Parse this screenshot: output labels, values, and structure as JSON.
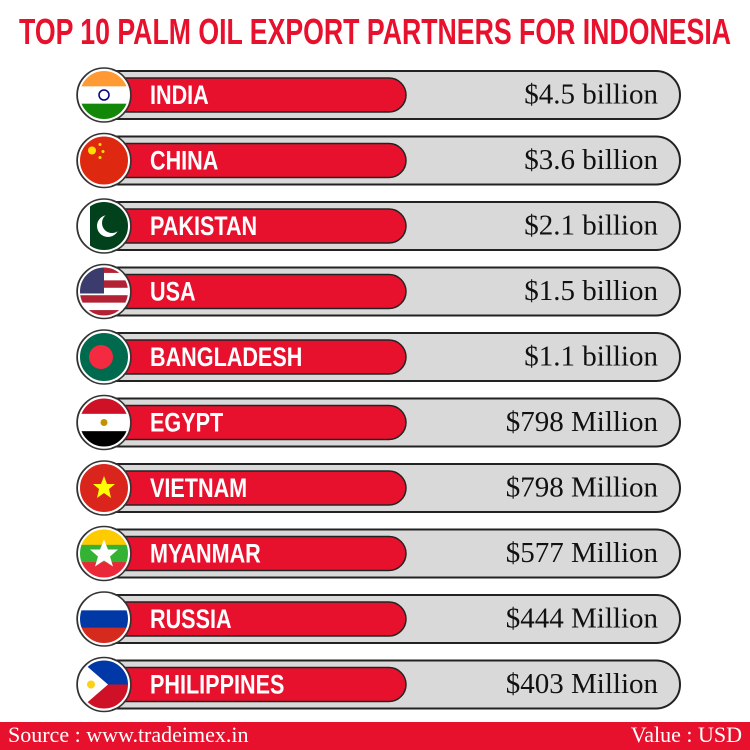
{
  "header": {
    "title": "TOP 10 PALM OIL EXPORT PARTNERS FOR INDONESIA"
  },
  "rows": [
    {
      "country": "INDIA",
      "value": "$4.5 billion"
    },
    {
      "country": "CHINA",
      "value": "$3.6 billion"
    },
    {
      "country": "PAKISTAN",
      "value": "$2.1 billion"
    },
    {
      "country": "USA",
      "value": "$1.5 billion"
    },
    {
      "country": "BANGLADESH",
      "value": "$1.1 billion"
    },
    {
      "country": "EGYPT",
      "value": "$798 Million"
    },
    {
      "country": "VIETNAM",
      "value": "$798 Million"
    },
    {
      "country": "MYANMAR",
      "value": "$577 Million"
    },
    {
      "country": "RUSSIA",
      "value": "$444 Million"
    },
    {
      "country": "PHILIPPINES",
      "value": "$403 Million"
    }
  ],
  "footer": {
    "source": "Source : www.tradeimex.in",
    "unit": "Value : USD"
  }
}
